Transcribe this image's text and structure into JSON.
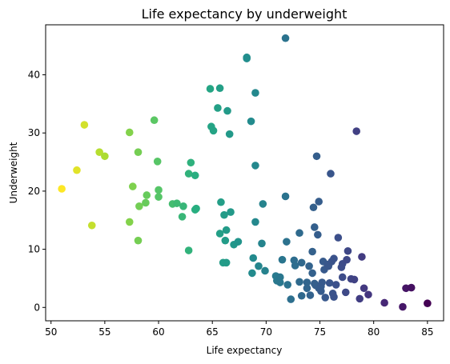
{
  "chart_data": {
    "type": "scatter",
    "title": "Life expectancy by underweight",
    "xlabel": "Life expectancy",
    "ylabel": "Underweight",
    "xlim": [
      49.5,
      86.5
    ],
    "ylim": [
      -2.3,
      48.6
    ],
    "xticks": [
      50,
      55,
      60,
      65,
      70,
      75,
      80,
      85
    ],
    "yticks": [
      0,
      10,
      20,
      30,
      40
    ],
    "grid": false,
    "legend": "none",
    "colormap": "viridis (reversed by life expectancy)",
    "color_range": [
      "#fde725",
      "#440154"
    ],
    "points": [
      {
        "x": 51.0,
        "y": 20.4
      },
      {
        "x": 52.4,
        "y": 23.6
      },
      {
        "x": 53.1,
        "y": 31.4
      },
      {
        "x": 53.8,
        "y": 14.1
      },
      {
        "x": 54.5,
        "y": 26.7
      },
      {
        "x": 55.0,
        "y": 26.0
      },
      {
        "x": 57.3,
        "y": 30.1
      },
      {
        "x": 57.6,
        "y": 20.8
      },
      {
        "x": 57.3,
        "y": 14.7
      },
      {
        "x": 58.1,
        "y": 26.7
      },
      {
        "x": 58.2,
        "y": 17.4
      },
      {
        "x": 58.1,
        "y": 11.5
      },
      {
        "x": 58.8,
        "y": 18.0
      },
      {
        "x": 58.9,
        "y": 19.3
      },
      {
        "x": 59.6,
        "y": 32.2
      },
      {
        "x": 59.9,
        "y": 25.1
      },
      {
        "x": 60.0,
        "y": 20.2
      },
      {
        "x": 60.0,
        "y": 19.0
      },
      {
        "x": 61.3,
        "y": 17.8
      },
      {
        "x": 61.7,
        "y": 17.9
      },
      {
        "x": 62.2,
        "y": 15.6
      },
      {
        "x": 62.3,
        "y": 17.4
      },
      {
        "x": 62.8,
        "y": 9.8
      },
      {
        "x": 62.8,
        "y": 23.0
      },
      {
        "x": 63.0,
        "y": 24.9
      },
      {
        "x": 63.4,
        "y": 22.7
      },
      {
        "x": 63.4,
        "y": 16.8
      },
      {
        "x": 63.5,
        "y": 17.0
      },
      {
        "x": 64.8,
        "y": 37.6
      },
      {
        "x": 64.9,
        "y": 31.1
      },
      {
        "x": 65.1,
        "y": 30.4
      },
      {
        "x": 65.5,
        "y": 34.3
      },
      {
        "x": 65.7,
        "y": 37.7
      },
      {
        "x": 65.7,
        "y": 12.7
      },
      {
        "x": 65.8,
        "y": 18.1
      },
      {
        "x": 66.1,
        "y": 15.9
      },
      {
        "x": 66.2,
        "y": 11.5
      },
      {
        "x": 66.0,
        "y": 7.7
      },
      {
        "x": 66.3,
        "y": 13.3
      },
      {
        "x": 66.4,
        "y": 33.8
      },
      {
        "x": 66.3,
        "y": 7.7
      },
      {
        "x": 66.6,
        "y": 29.8
      },
      {
        "x": 66.7,
        "y": 16.4
      },
      {
        "x": 67.0,
        "y": 10.8
      },
      {
        "x": 67.4,
        "y": 11.3
      },
      {
        "x": 68.2,
        "y": 43.0
      },
      {
        "x": 68.2,
        "y": 42.8
      },
      {
        "x": 68.6,
        "y": 32.0
      },
      {
        "x": 68.8,
        "y": 8.5
      },
      {
        "x": 68.7,
        "y": 5.9
      },
      {
        "x": 69.0,
        "y": 36.9
      },
      {
        "x": 69.0,
        "y": 24.4
      },
      {
        "x": 69.0,
        "y": 14.7
      },
      {
        "x": 69.3,
        "y": 7.1
      },
      {
        "x": 69.6,
        "y": 11.0
      },
      {
        "x": 69.7,
        "y": 17.8
      },
      {
        "x": 69.9,
        "y": 6.3
      },
      {
        "x": 70.9,
        "y": 5.4
      },
      {
        "x": 71.0,
        "y": 4.6
      },
      {
        "x": 71.3,
        "y": 5.2
      },
      {
        "x": 71.3,
        "y": 4.3
      },
      {
        "x": 71.5,
        "y": 8.2
      },
      {
        "x": 71.8,
        "y": 46.3
      },
      {
        "x": 71.8,
        "y": 19.1
      },
      {
        "x": 71.9,
        "y": 11.3
      },
      {
        "x": 72.0,
        "y": 3.9
      },
      {
        "x": 72.3,
        "y": 1.4
      },
      {
        "x": 72.6,
        "y": 8.1
      },
      {
        "x": 72.7,
        "y": 7.2
      },
      {
        "x": 73.1,
        "y": 12.8
      },
      {
        "x": 73.1,
        "y": 4.4
      },
      {
        "x": 73.3,
        "y": 7.7
      },
      {
        "x": 73.3,
        "y": 2.0
      },
      {
        "x": 73.8,
        "y": 4.3
      },
      {
        "x": 73.8,
        "y": 3.3
      },
      {
        "x": 74.0,
        "y": 7.1
      },
      {
        "x": 74.1,
        "y": 2.1
      },
      {
        "x": 74.3,
        "y": 9.6
      },
      {
        "x": 74.3,
        "y": 5.9
      },
      {
        "x": 74.4,
        "y": 17.2
      },
      {
        "x": 74.5,
        "y": 13.8
      },
      {
        "x": 74.5,
        "y": 4.1
      },
      {
        "x": 74.6,
        "y": 3.8
      },
      {
        "x": 74.7,
        "y": 26.0
      },
      {
        "x": 74.8,
        "y": 12.5
      },
      {
        "x": 74.9,
        "y": 18.2
      },
      {
        "x": 74.9,
        "y": 3.3
      },
      {
        "x": 75.1,
        "y": 2.8
      },
      {
        "x": 75.1,
        "y": 3.6
      },
      {
        "x": 75.2,
        "y": 4.3
      },
      {
        "x": 75.3,
        "y": 7.9
      },
      {
        "x": 75.4,
        "y": 6.5
      },
      {
        "x": 75.5,
        "y": 1.7
      },
      {
        "x": 75.7,
        "y": 7.4
      },
      {
        "x": 75.8,
        "y": 7.1
      },
      {
        "x": 75.9,
        "y": 4.2
      },
      {
        "x": 76.0,
        "y": 23.0
      },
      {
        "x": 76.1,
        "y": 7.9
      },
      {
        "x": 76.2,
        "y": 2.4
      },
      {
        "x": 76.3,
        "y": 1.8
      },
      {
        "x": 76.3,
        "y": 8.4
      },
      {
        "x": 76.5,
        "y": 3.9
      },
      {
        "x": 76.7,
        "y": 12.0
      },
      {
        "x": 77.0,
        "y": 6.9
      },
      {
        "x": 77.1,
        "y": 7.5
      },
      {
        "x": 77.1,
        "y": 5.2
      },
      {
        "x": 77.4,
        "y": 2.6
      },
      {
        "x": 77.5,
        "y": 8.2
      },
      {
        "x": 77.6,
        "y": 9.7
      },
      {
        "x": 77.9,
        "y": 4.9
      },
      {
        "x": 78.2,
        "y": 4.8
      },
      {
        "x": 78.4,
        "y": 30.3
      },
      {
        "x": 78.7,
        "y": 1.5
      },
      {
        "x": 78.9,
        "y": 8.7
      },
      {
        "x": 79.1,
        "y": 3.3
      },
      {
        "x": 79.5,
        "y": 2.2
      },
      {
        "x": 81.0,
        "y": 0.8
      },
      {
        "x": 82.7,
        "y": 0.1
      },
      {
        "x": 83.0,
        "y": 3.3
      },
      {
        "x": 83.5,
        "y": 3.4
      },
      {
        "x": 85.0,
        "y": 0.7
      }
    ]
  }
}
